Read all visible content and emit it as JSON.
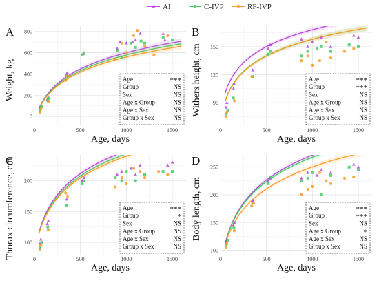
{
  "legend": [
    {
      "name": "AI",
      "color": "#bb44dd",
      "marker": "triangle"
    },
    {
      "name": "C-IVP",
      "color": "#44cc66",
      "marker": "square"
    },
    {
      "name": "RF-IVP",
      "color": "#ff9922",
      "marker": "circle"
    }
  ],
  "chart_data": [
    {
      "panel": "A",
      "type": "scatter",
      "xlabel": "Age, days",
      "ylabel": "Weight, kg",
      "xlim": [
        0,
        1650
      ],
      "ylim": [
        -90,
        850
      ],
      "xticks": [
        0,
        500,
        1000,
        1500
      ],
      "yticks": [
        0,
        200,
        400,
        600,
        800
      ],
      "grid": true,
      "curves": [
        {
          "series": "AI",
          "a": 182,
          "x0": 80,
          "x_start": 50,
          "x_end": 1600,
          "shift": -40
        },
        {
          "series": "C-IVP",
          "a": 176,
          "x0": 80,
          "x_start": 50,
          "x_end": 1600,
          "shift": -40
        },
        {
          "series": "RF-IVP",
          "a": 170,
          "x0": 80,
          "x_start": 50,
          "x_end": 1600,
          "shift": -38
        }
      ],
      "points": {
        "AI": [
          [
            60,
            80
          ],
          [
            70,
            100
          ],
          [
            140,
            160
          ],
          [
            150,
            180
          ],
          [
            350,
            400
          ],
          [
            360,
            410
          ],
          [
            530,
            590
          ],
          [
            900,
            640
          ],
          [
            930,
            700
          ],
          [
            1000,
            690
          ],
          [
            1070,
            700
          ],
          [
            1100,
            720
          ],
          [
            1150,
            780
          ],
          [
            1400,
            780
          ],
          [
            1420,
            720
          ]
        ],
        "C-IVP": [
          [
            60,
            60
          ],
          [
            75,
            90
          ],
          [
            145,
            150
          ],
          [
            155,
            170
          ],
          [
            350,
            380
          ],
          [
            520,
            580
          ],
          [
            540,
            600
          ],
          [
            900,
            620
          ],
          [
            950,
            560
          ],
          [
            1050,
            690
          ],
          [
            1100,
            650
          ],
          [
            1160,
            710
          ],
          [
            1200,
            690
          ],
          [
            1400,
            740
          ],
          [
            1500,
            720
          ]
        ],
        "RF-IVP": [
          [
            60,
            40
          ],
          [
            70,
            70
          ],
          [
            150,
            140
          ],
          [
            340,
            340
          ],
          [
            360,
            380
          ],
          [
            870,
            540
          ],
          [
            950,
            690
          ],
          [
            1000,
            600
          ],
          [
            1080,
            760
          ],
          [
            1120,
            810
          ],
          [
            1200,
            660
          ],
          [
            1300,
            580
          ],
          [
            1450,
            760
          ]
        ]
      },
      "table": [
        {
          "term": "Age",
          "sig": "***"
        },
        {
          "term": "Group",
          "sig": "NS"
        },
        {
          "term": "Sex",
          "sig": "NS"
        },
        {
          "term": "Age x Group",
          "sig": "NS"
        },
        {
          "term": "Age x Sex",
          "sig": "NS"
        },
        {
          "term": "Group x Sex",
          "sig": "NS"
        }
      ]
    },
    {
      "panel": "B",
      "type": "scatter",
      "xlabel": "Age, days",
      "ylabel": "Withers height, cm",
      "xlim": [
        0,
        1650
      ],
      "ylim": [
        65,
        172
      ],
      "xticks": [
        0,
        500,
        1000,
        1500
      ],
      "yticks": [
        90,
        120,
        150
      ],
      "grid": true,
      "curves": [
        {
          "series": "AI",
          "a": 20.5,
          "x0": 40,
          "x_start": 50,
          "x_end": 1600,
          "shift": 78
        },
        {
          "series": "C-IVP",
          "a": 20,
          "x0": 40,
          "x_start": 50,
          "x_end": 1600,
          "shift": 70
        },
        {
          "series": "RF-IVP",
          "a": 20.2,
          "x0": 40,
          "x_start": 50,
          "x_end": 1600,
          "shift": 69
        }
      ],
      "points": {
        "AI": [
          [
            60,
            85
          ],
          [
            70,
            90
          ],
          [
            140,
            105
          ],
          [
            150,
            110
          ],
          [
            350,
            125
          ],
          [
            520,
            148
          ],
          [
            540,
            152
          ],
          [
            880,
            158
          ],
          [
            950,
            150
          ],
          [
            1000,
            155
          ],
          [
            1100,
            160
          ],
          [
            1200,
            150
          ],
          [
            1450,
            162
          ],
          [
            1500,
            160
          ]
        ],
        "C-IVP": [
          [
            60,
            78
          ],
          [
            80,
            82
          ],
          [
            140,
            95
          ],
          [
            350,
            118
          ],
          [
            520,
            142
          ],
          [
            540,
            145
          ],
          [
            880,
            140
          ],
          [
            950,
            145
          ],
          [
            1050,
            148
          ],
          [
            1100,
            150
          ],
          [
            1200,
            145
          ],
          [
            1400,
            152
          ],
          [
            1500,
            150
          ]
        ],
        "RF-IVP": [
          [
            60,
            75
          ],
          [
            70,
            80
          ],
          [
            150,
            92
          ],
          [
            340,
            118
          ],
          [
            880,
            135
          ],
          [
            950,
            140
          ],
          [
            1000,
            130
          ],
          [
            1080,
            135
          ],
          [
            1150,
            155
          ],
          [
            1200,
            138
          ],
          [
            1350,
            145
          ],
          [
            1450,
            148
          ]
        ]
      },
      "table": [
        {
          "term": "Age",
          "sig": "***"
        },
        {
          "term": "Group",
          "sig": "***"
        },
        {
          "term": "Sex",
          "sig": "NS"
        },
        {
          "term": "Age x Group",
          "sig": "NS"
        },
        {
          "term": "Age x Sex",
          "sig": "NS"
        },
        {
          "term": "Group x Sex",
          "sig": "NS"
        }
      ]
    },
    {
      "panel": "C",
      "type": "scatter",
      "xlabel": "Age, days",
      "ylabel": "Thorax circumference, cm",
      "xlim": [
        0,
        1650
      ],
      "ylim": [
        80,
        242
      ],
      "xticks": [
        0,
        500,
        1000,
        1500
      ],
      "yticks": [
        100,
        150,
        200
      ],
      "grid": true,
      "curves": [
        {
          "series": "AI",
          "a": 43,
          "x0": 60,
          "x_start": 50,
          "x_end": 1600,
          "shift": 82
        },
        {
          "series": "C-IVP",
          "a": 42,
          "x0": 60,
          "x_start": 50,
          "x_end": 1600,
          "shift": 81
        },
        {
          "series": "RF-IVP",
          "a": 41,
          "x0": 60,
          "x_start": 50,
          "x_end": 1600,
          "shift": 81
        }
      ],
      "points": {
        "AI": [
          [
            60,
            98
          ],
          [
            70,
            105
          ],
          [
            140,
            130
          ],
          [
            150,
            135
          ],
          [
            350,
            170
          ],
          [
            520,
            200
          ],
          [
            540,
            205
          ],
          [
            900,
            210
          ],
          [
            950,
            215
          ],
          [
            1050,
            220
          ],
          [
            1100,
            210
          ],
          [
            1150,
            225
          ],
          [
            1450,
            225
          ],
          [
            1500,
            230
          ]
        ],
        "C-IVP": [
          [
            60,
            92
          ],
          [
            80,
            100
          ],
          [
            145,
            125
          ],
          [
            350,
            160
          ],
          [
            520,
            195
          ],
          [
            540,
            200
          ],
          [
            880,
            205
          ],
          [
            950,
            200
          ],
          [
            1000,
            215
          ],
          [
            1100,
            200
          ],
          [
            1200,
            210
          ],
          [
            1400,
            215
          ],
          [
            1500,
            215
          ]
        ],
        "RF-IVP": [
          [
            60,
            88
          ],
          [
            70,
            95
          ],
          [
            150,
            120
          ],
          [
            340,
            180
          ],
          [
            360,
            175
          ],
          [
            880,
            190
          ],
          [
            950,
            205
          ],
          [
            1000,
            195
          ],
          [
            1080,
            220
          ],
          [
            1150,
            215
          ],
          [
            1200,
            205
          ],
          [
            1350,
            215
          ],
          [
            1450,
            210
          ]
        ]
      },
      "table": [
        {
          "term": "Age",
          "sig": "***"
        },
        {
          "term": "Group",
          "sig": "*"
        },
        {
          "term": "Sex",
          "sig": "NS"
        },
        {
          "term": "Age x Group",
          "sig": "NS"
        },
        {
          "term": "Age x Sex",
          "sig": "NS"
        },
        {
          "term": "Group x Sex",
          "sig": "NS"
        }
      ]
    },
    {
      "panel": "D",
      "type": "scatter",
      "xlabel": "Age, days",
      "ylabel": "Body length, cm",
      "xlim": [
        0,
        1650
      ],
      "ylim": [
        92,
        272
      ],
      "xticks": [
        0,
        500,
        1000,
        1500
      ],
      "yticks": [
        100,
        150,
        200,
        250
      ],
      "grid": true,
      "curves": [
        {
          "series": "AI",
          "a": 52,
          "x0": 60,
          "x_start": 50,
          "x_end": 1600,
          "shift": 70
        },
        {
          "series": "C-IVP",
          "a": 51,
          "x0": 60,
          "x_start": 50,
          "x_end": 1600,
          "shift": 70
        },
        {
          "series": "RF-IVP",
          "a": 46,
          "x0": 60,
          "x_start": 50,
          "x_end": 1600,
          "shift": 72
        }
      ],
      "points": {
        "AI": [
          [
            60,
            115
          ],
          [
            70,
            120
          ],
          [
            140,
            145
          ],
          [
            150,
            150
          ],
          [
            350,
            190
          ],
          [
            520,
            225
          ],
          [
            540,
            230
          ],
          [
            880,
            230
          ],
          [
            950,
            240
          ],
          [
            1050,
            235
          ],
          [
            1100,
            245
          ],
          [
            1200,
            240
          ],
          [
            1450,
            255
          ],
          [
            1500,
            250
          ]
        ],
        "C-IVP": [
          [
            60,
            110
          ],
          [
            80,
            118
          ],
          [
            145,
            140
          ],
          [
            350,
            185
          ],
          [
            520,
            220
          ],
          [
            540,
            232
          ],
          [
            880,
            225
          ],
          [
            950,
            230
          ],
          [
            1000,
            240
          ],
          [
            1100,
            200
          ],
          [
            1200,
            235
          ],
          [
            1400,
            250
          ],
          [
            1500,
            245
          ]
        ],
        "RF-IVP": [
          [
            60,
            105
          ],
          [
            70,
            112
          ],
          [
            150,
            135
          ],
          [
            340,
            180
          ],
          [
            360,
            185
          ],
          [
            880,
            200
          ],
          [
            950,
            210
          ],
          [
            1000,
            215
          ],
          [
            1080,
            240
          ],
          [
            1150,
            225
          ],
          [
            1200,
            220
          ],
          [
            1350,
            230
          ],
          [
            1450,
            232
          ]
        ]
      },
      "table": [
        {
          "term": "Age",
          "sig": "***"
        },
        {
          "term": "Group",
          "sig": "***"
        },
        {
          "term": "Sex",
          "sig": "NS"
        },
        {
          "term": "Age x Group",
          "sig": "*"
        },
        {
          "term": "Age x Sex",
          "sig": "NS"
        },
        {
          "term": "Group x Sex",
          "sig": "NS"
        }
      ]
    }
  ]
}
